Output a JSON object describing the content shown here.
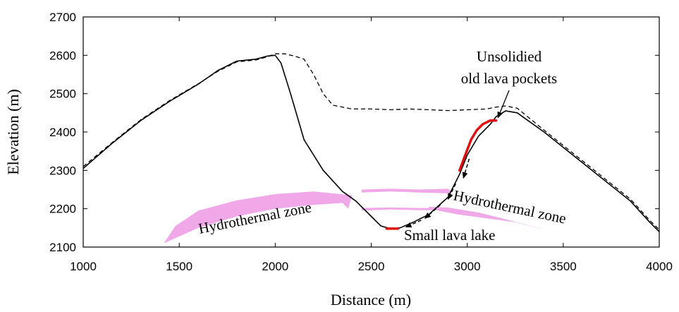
{
  "chart_data": {
    "type": "line",
    "xlabel": "Distance (m)",
    "ylabel": "Elevation (m)",
    "xlim": [
      1000,
      4000
    ],
    "ylim": [
      2100,
      2700
    ],
    "xticks": [
      1000,
      1500,
      2000,
      2500,
      3000,
      3500,
      4000
    ],
    "yticks": [
      2100,
      2200,
      2300,
      2400,
      2500,
      2600,
      2700
    ],
    "grid": false,
    "series": [
      {
        "style": "solid",
        "color": "#000000",
        "x": [
          1000,
          1150,
          1300,
          1450,
          1600,
          1700,
          1800,
          1900,
          1960,
          2000,
          2030,
          2080,
          2150,
          2250,
          2350,
          2420,
          2500,
          2550,
          2600,
          2650,
          2720,
          2800,
          2900,
          2960,
          3000,
          3060,
          3120,
          3150,
          3200,
          3260,
          3400,
          3550,
          3700,
          3850,
          3950,
          4000
        ],
        "y": [
          2305,
          2370,
          2430,
          2480,
          2525,
          2560,
          2585,
          2590,
          2598,
          2600,
          2580,
          2500,
          2380,
          2300,
          2245,
          2220,
          2180,
          2155,
          2148,
          2150,
          2165,
          2185,
          2230,
          2290,
          2340,
          2390,
          2420,
          2440,
          2455,
          2450,
          2400,
          2340,
          2280,
          2220,
          2165,
          2140
        ]
      },
      {
        "style": "dashed",
        "color": "#000000",
        "x": [
          1000,
          1150,
          1300,
          1450,
          1600,
          1700,
          1800,
          1900,
          1960,
          2000,
          2050,
          2100,
          2150,
          2200,
          2250,
          2300,
          2400,
          2500,
          2600,
          2700,
          2800,
          2900,
          3000,
          3100,
          3150,
          3200,
          3260,
          3400,
          3550,
          3700,
          3850,
          3950,
          4000
        ],
        "y": [
          2310,
          2372,
          2432,
          2482,
          2526,
          2558,
          2583,
          2588,
          2596,
          2604,
          2604,
          2598,
          2590,
          2550,
          2500,
          2470,
          2460,
          2460,
          2458,
          2460,
          2458,
          2456,
          2458,
          2460,
          2465,
          2468,
          2462,
          2405,
          2345,
          2285,
          2225,
          2170,
          2145
        ]
      }
    ],
    "hydrothermal_zones": [
      {
        "label": "Hydrothermal zone",
        "color": "#f0a8e8",
        "outline_x": [
          1420,
          1600,
          1800,
          2000,
          2200,
          2350,
          2380,
          2400,
          2200,
          2000,
          1800,
          1600,
          1480,
          1420
        ],
        "outline_y": [
          2110,
          2150,
          2180,
          2200,
          2210,
          2215,
          2200,
          2235,
          2245,
          2238,
          2222,
          2195,
          2155,
          2110
        ]
      },
      {
        "label": "Hydrothermal zone",
        "color": "#f0a8e8",
        "outline_x": [
          2800,
          2950,
          3100,
          3250,
          3400,
          3550,
          3620,
          3520,
          3380,
          3220,
          3060,
          2900,
          2800
        ],
        "outline_y": [
          2200,
          2185,
          2175,
          2165,
          2145,
          2120,
          2108,
          2125,
          2148,
          2170,
          2190,
          2203,
          2205
        ]
      },
      {
        "label": "",
        "color": "#f0a8e8",
        "outline_x": [
          2450,
          2600,
          2750,
          2900,
          2920,
          2900,
          2750,
          2600,
          2450
        ],
        "outline_y": [
          2242,
          2245,
          2242,
          2240,
          2243,
          2252,
          2250,
          2252,
          2250
        ]
      },
      {
        "label": "",
        "color": "#f0a8e8",
        "outline_x": [
          2450,
          2600,
          2750,
          2880,
          2880,
          2750,
          2600,
          2450
        ],
        "outline_y": [
          2195,
          2198,
          2196,
          2196,
          2202,
          2202,
          2203,
          2202
        ]
      }
    ],
    "red_segments": [
      {
        "x": [
          2580,
          2640
        ],
        "y": [
          2148,
          2148
        ]
      },
      {
        "x": [
          2960,
          2990,
          3020,
          3050,
          3080,
          3120,
          3150
        ],
        "y": [
          2300,
          2340,
          2380,
          2405,
          2420,
          2430,
          2430
        ]
      }
    ],
    "flow_arrows": [
      {
        "from_x": 3010,
        "from_y": 2330,
        "to_x": 2980,
        "to_y": 2280
      },
      {
        "from_x": 2940,
        "from_y": 2265,
        "to_x": 2900,
        "to_y": 2225
      },
      {
        "from_x": 2860,
        "from_y": 2210,
        "to_x": 2780,
        "to_y": 2175
      },
      {
        "from_x": 2760,
        "from_y": 2170,
        "to_x": 2680,
        "to_y": 2152
      }
    ],
    "annotations": [
      {
        "text_lines": [
          "Unsolidied",
          "old lava pockets"
        ],
        "arrow_to_x": 3160,
        "arrow_to_y": 2430
      },
      {
        "text": "Small lava lake"
      },
      {
        "text": "Hydrothermal zone"
      },
      {
        "text": "Hydrothermal zone"
      }
    ]
  }
}
